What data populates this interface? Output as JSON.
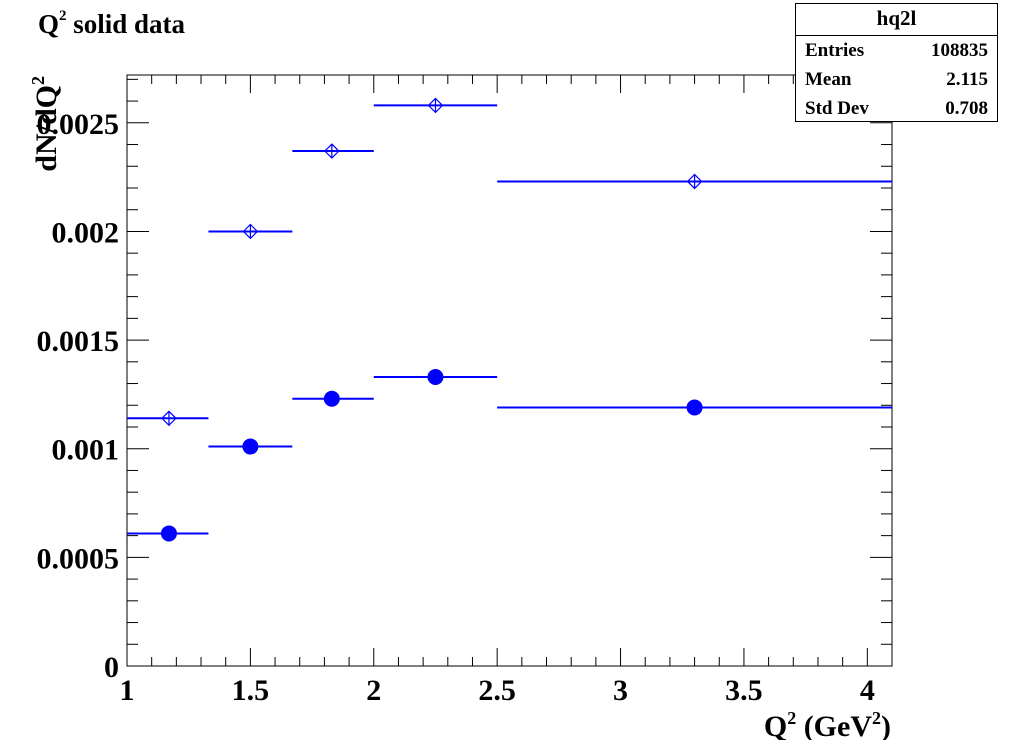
{
  "title": "solid data",
  "title_symbol": "Q",
  "title_sup": "2",
  "stats": {
    "name": "hq2l",
    "rows": [
      {
        "label": "Entries",
        "value": "108835"
      },
      {
        "label": "Mean",
        "value": "2.115"
      },
      {
        "label": "Std Dev",
        "value": "0.708"
      }
    ]
  },
  "colors": {
    "series": "#0000ff",
    "axis": "#000000"
  },
  "chart_data": {
    "type": "scatter",
    "title": "Q2 solid data",
    "xlabel": "Q2 (GeV2)",
    "ylabel": "dN/dQ2",
    "xlim": [
      1,
      4.1
    ],
    "ylim": [
      0,
      0.00272
    ],
    "x_ticks": [
      "1",
      "1.5",
      "2",
      "2.5",
      "3",
      "3.5",
      "4"
    ],
    "x_tick_values": [
      1,
      1.5,
      2,
      2.5,
      3,
      3.5,
      4
    ],
    "y_ticks": [
      "0",
      "0.0005",
      "0.001",
      "0.0015",
      "0.002",
      "0.0025"
    ],
    "y_tick_values": [
      0,
      0.0005,
      0.001,
      0.0015,
      0.002,
      0.0025
    ],
    "series": [
      {
        "marker": "open-diamond",
        "points": [
          {
            "x": 1.17,
            "xlo": 1.0,
            "xhi": 1.33,
            "y": 0.00114
          },
          {
            "x": 1.5,
            "xlo": 1.33,
            "xhi": 1.67,
            "y": 0.002
          },
          {
            "x": 1.83,
            "xlo": 1.67,
            "xhi": 2.0,
            "y": 0.00237
          },
          {
            "x": 2.25,
            "xlo": 2.0,
            "xhi": 2.5,
            "y": 0.00258
          },
          {
            "x": 3.3,
            "xlo": 2.5,
            "xhi": 4.1,
            "y": 0.00223
          }
        ]
      },
      {
        "marker": "filled-circle",
        "points": [
          {
            "x": 1.17,
            "xlo": 1.0,
            "xhi": 1.33,
            "y": 0.00061
          },
          {
            "x": 1.5,
            "xlo": 1.33,
            "xhi": 1.67,
            "y": 0.00101
          },
          {
            "x": 1.83,
            "xlo": 1.67,
            "xhi": 2.0,
            "y": 0.00123
          },
          {
            "x": 2.25,
            "xlo": 2.0,
            "xhi": 2.5,
            "y": 0.00133
          },
          {
            "x": 3.3,
            "xlo": 2.5,
            "xhi": 4.1,
            "y": 0.00119
          }
        ]
      }
    ]
  }
}
